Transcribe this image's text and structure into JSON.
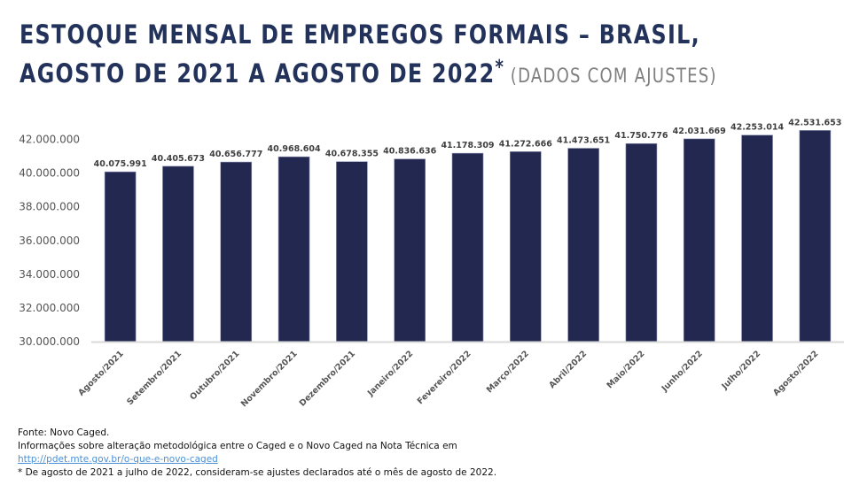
{
  "header": {
    "title_line1": "ESTOQUE MENSAL DE EMPREGOS FORMAIS – BRASIL,",
    "title_line2": "AGOSTO DE 2021 A AGOSTO DE 2022",
    "title_asterisk": "*",
    "subtitle": "(DADOS COM AJUSTES)"
  },
  "colors": {
    "bar": "#232850",
    "title": "#22325a",
    "subtitle": "#7f7f7f",
    "axis_line": "#d9d9d9",
    "link": "#4a90d9"
  },
  "chart_data": {
    "type": "bar",
    "title": "Estoque mensal de empregos formais – Brasil, agosto de 2021 a agosto de 2022 (dados com ajustes)",
    "xlabel": "",
    "ylabel": "",
    "ylim": [
      30000000,
      42000000
    ],
    "yticks": [
      30000000,
      32000000,
      34000000,
      36000000,
      38000000,
      40000000,
      42000000
    ],
    "ytick_labels": [
      "30.000.000",
      "32.000.000",
      "34.000.000",
      "36.000.000",
      "38.000.000",
      "40.000.000",
      "42.000.000"
    ],
    "grid": false,
    "legend": "none",
    "categories": [
      "Agosto/2021",
      "Setembro/2021",
      "Outubro/2021",
      "Novembro/2021",
      "Dezembro/2021",
      "Janeiro/2022",
      "Fevereiro/2022",
      "Março/2022",
      "Abril/2022",
      "Maio/2022",
      "Junho/2022",
      "Julho/2022",
      "Agosto/2022"
    ],
    "values": [
      40075991,
      40405673,
      40656777,
      40968604,
      40678355,
      40836636,
      41178309,
      41272666,
      41473651,
      41750776,
      42031669,
      42253014,
      42531653
    ],
    "data_labels": [
      "40.075.991",
      "40.405.673",
      "40.656.777",
      "40.968.604",
      "40.678.355",
      "40.836.636",
      "41.178.309",
      "41.272.666",
      "41.473.651",
      "41.750.776",
      "42.031.669",
      "42.253.014",
      "42.531.653"
    ]
  },
  "footer": {
    "source": "Fonte: Novo Caged.",
    "info": "Informações sobre alteração metodológica entre o Caged e o Novo Caged na Nota Técnica em",
    "link": "http://pdet.mte.gov.br/o-que-e-novo-caged",
    "note": "* De agosto de 2021 a julho de 2022, consideram-se ajustes declarados até o mês de agosto de 2022."
  }
}
